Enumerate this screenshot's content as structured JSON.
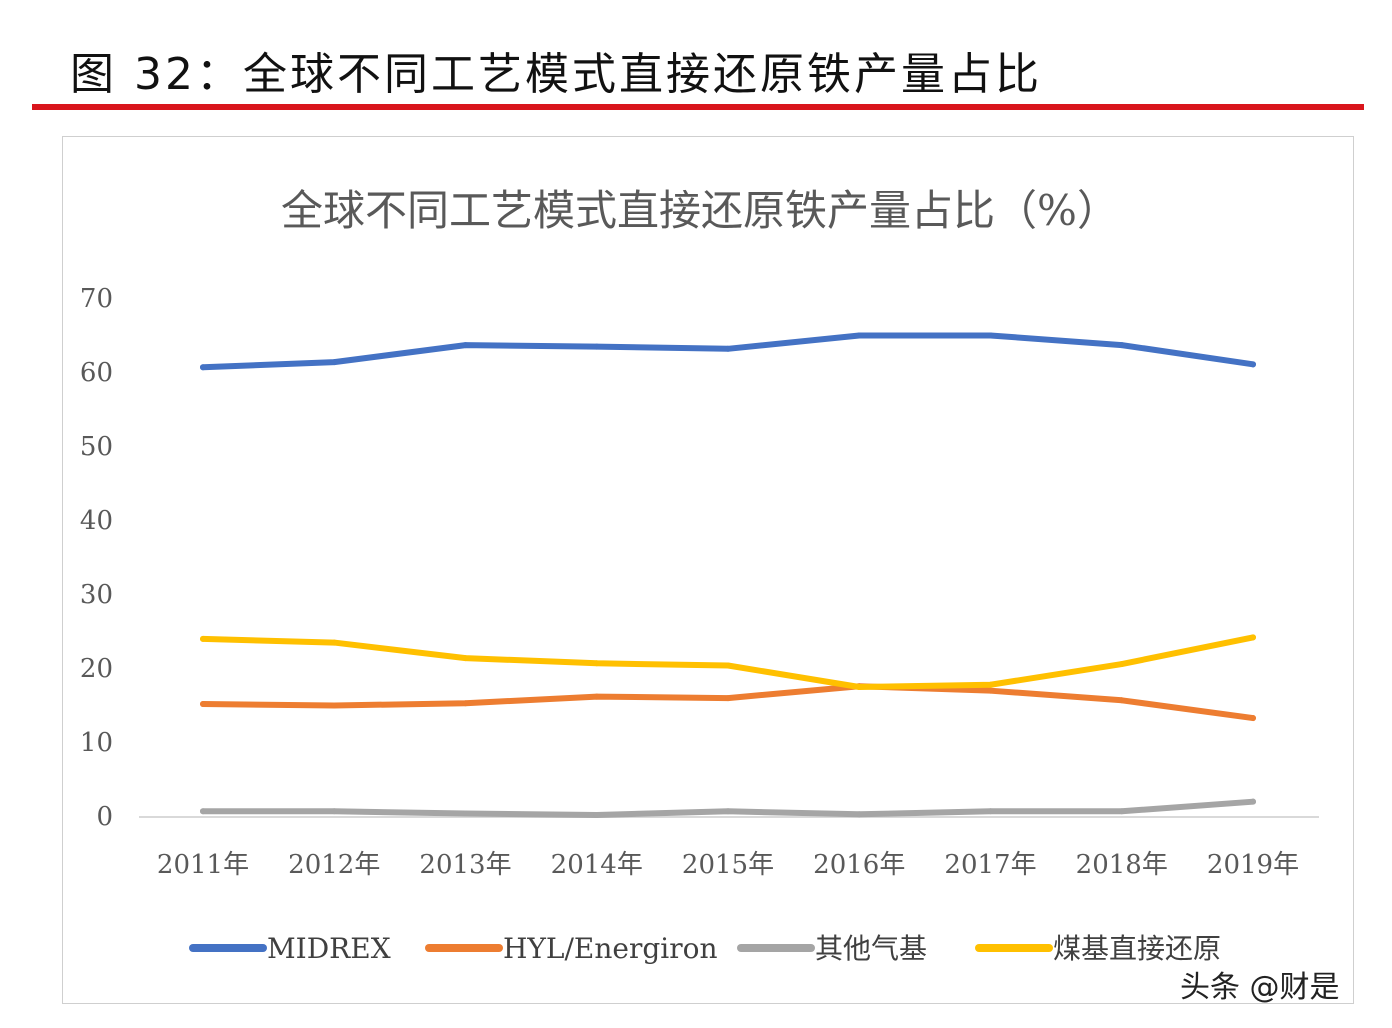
{
  "figure": {
    "title": "图 32：全球不同工艺模式直接还原铁产量占比"
  },
  "watermark": "头条 @财是",
  "chart_data": {
    "type": "line",
    "title": "全球不同工艺模式直接还原铁产量占比（%）",
    "xlabel": "",
    "ylabel": "",
    "x": [
      "2011年",
      "2012年",
      "2013年",
      "2014年",
      "2015年",
      "2016年",
      "2017年",
      "2018年",
      "2019年"
    ],
    "ylim": [
      0,
      70
    ],
    "yticks": [
      0,
      10,
      20,
      30,
      40,
      50,
      60,
      70
    ],
    "grid": false,
    "legend": "bottom",
    "series": [
      {
        "name": "MIDREX",
        "color": "#4472c4",
        "values": [
          60.5,
          61.2,
          63.5,
          63.3,
          63.0,
          64.8,
          64.8,
          63.5,
          60.9
        ]
      },
      {
        "name": "HYL/Energiron",
        "color": "#ed7d31",
        "values": [
          15.0,
          14.8,
          15.1,
          16.0,
          15.8,
          17.4,
          16.8,
          15.5,
          13.1
        ]
      },
      {
        "name": "其他气基",
        "color": "#a5a5a5",
        "values": [
          0.5,
          0.5,
          0.2,
          0.0,
          0.5,
          0.1,
          0.5,
          0.5,
          1.8
        ]
      },
      {
        "name": "煤基直接还原",
        "color": "#ffc000",
        "values": [
          23.8,
          23.3,
          21.2,
          20.5,
          20.2,
          17.3,
          17.6,
          20.4,
          24.0
        ]
      }
    ]
  }
}
